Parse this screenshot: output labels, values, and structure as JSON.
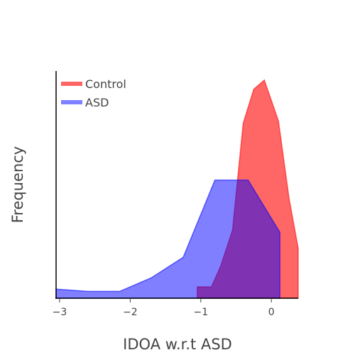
{
  "chart_data": {
    "type": "area",
    "title": "",
    "xlabel": "IDOA w.r.t ASD",
    "ylabel": "Frequency",
    "xlim": [
      -3.05,
      0.38
    ],
    "ylim": [
      0,
      1.0
    ],
    "xticks": [
      -3,
      -2,
      -1,
      0
    ],
    "xtick_labels": [
      "−3",
      "−2",
      "−1",
      "0"
    ],
    "yticks_visible": false,
    "grid": false,
    "legend": {
      "position": "top-left"
    },
    "series": [
      {
        "name": "Control",
        "color": "#ff0000",
        "opacity": 0.6,
        "points": [
          [
            -1.05,
            0.0
          ],
          [
            -1.05,
            0.05
          ],
          [
            -0.85,
            0.05
          ],
          [
            -0.72,
            0.14
          ],
          [
            -0.55,
            0.3
          ],
          [
            -0.4,
            0.77
          ],
          [
            -0.25,
            0.92
          ],
          [
            -0.1,
            0.96
          ],
          [
            0.1,
            0.78
          ],
          [
            0.25,
            0.44
          ],
          [
            0.38,
            0.22
          ],
          [
            0.38,
            0.0
          ]
        ]
      },
      {
        "name": "ASD",
        "color": "#0000ff",
        "opacity": 0.5,
        "points": [
          [
            -3.05,
            0.0
          ],
          [
            -3.05,
            0.04
          ],
          [
            -2.6,
            0.03
          ],
          [
            -2.15,
            0.03
          ],
          [
            -1.7,
            0.09
          ],
          [
            -1.25,
            0.18
          ],
          [
            -0.8,
            0.52
          ],
          [
            -0.33,
            0.52
          ],
          [
            0.12,
            0.29
          ],
          [
            0.12,
            0.0
          ]
        ]
      }
    ]
  }
}
